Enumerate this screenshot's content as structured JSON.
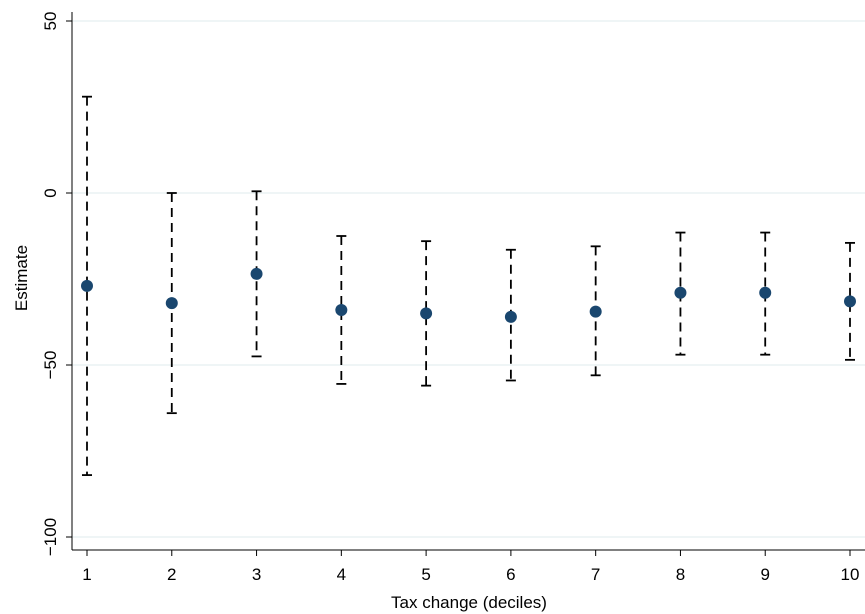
{
  "chart_data": {
    "type": "scatter",
    "title": "",
    "xlabel": "Tax change (deciles)",
    "ylabel": "Estimate",
    "x": [
      1,
      2,
      3,
      4,
      5,
      6,
      7,
      8,
      9,
      10
    ],
    "series": [
      {
        "estimate": [
          -27,
          -32,
          -23.5,
          -34,
          -35,
          -36,
          -34.5,
          -29,
          -29,
          -31.5
        ],
        "ci_upper": [
          28,
          0,
          0.5,
          -12.5,
          -14,
          -16.5,
          -15.5,
          -11.5,
          -11.5,
          -14.5
        ],
        "ci_lower": [
          -82,
          -64,
          -47.5,
          -55.5,
          -56,
          -54.5,
          -53,
          -47,
          -47,
          -48.5
        ]
      }
    ],
    "xticks": [
      "1",
      "2",
      "3",
      "4",
      "5",
      "6",
      "7",
      "8",
      "9",
      "10"
    ],
    "yticks": [
      "50",
      "0",
      "-50",
      "-100"
    ],
    "ytick_values": [
      50,
      0,
      -50,
      -100
    ],
    "xlim": [
      1,
      10
    ],
    "ylim": [
      -101,
      50
    ],
    "grid": "horizontal",
    "legend": "none",
    "colors": {
      "marker": "#1a476f",
      "gridline": "#eaf2f3",
      "errorbar": "#000000"
    }
  }
}
